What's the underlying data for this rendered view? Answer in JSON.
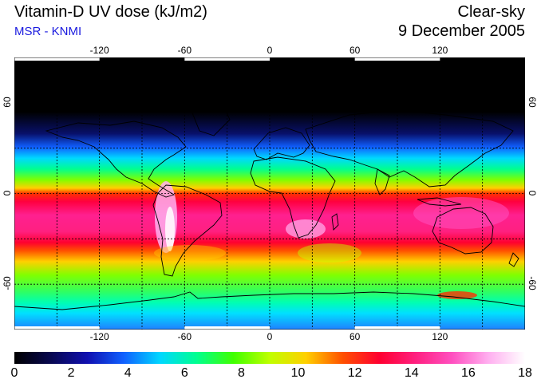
{
  "title": "Vitamin-D UV dose (kJ/m2)",
  "credit": "MSR - KNMI",
  "condition": "Clear-sky",
  "date": "9 December 2005",
  "map": {
    "lon_ticks": [
      "-120",
      "-60",
      "0",
      "60",
      "120"
    ],
    "lat_ticks_left": [
      "60",
      "0",
      "-60"
    ],
    "lat_ticks_right": [
      "60",
      "0",
      "-60"
    ],
    "lon_range": [
      -180,
      180
    ],
    "lat_range": [
      -90,
      90
    ],
    "grid_lon_values": [
      -150,
      -120,
      -90,
      -60,
      -30,
      0,
      30,
      60,
      90,
      120,
      150
    ],
    "grid_lat_values": [
      -60,
      -30,
      0,
      30,
      60
    ],
    "coastline_color": "#000000"
  },
  "colorbar": {
    "labels": [
      "0",
      "2",
      "4",
      "6",
      "8",
      "10",
      "12",
      "14",
      "16",
      "18"
    ],
    "min": 0,
    "max": 18,
    "colors": [
      "#000000",
      "#080850",
      "#1010b0",
      "#1060ff",
      "#00d8ff",
      "#00ff90",
      "#40ff00",
      "#c0ff00",
      "#ffd000",
      "#ff5000",
      "#ff0030",
      "#ff2080",
      "#ff50c0",
      "#ffb0f0",
      "#ffffff"
    ]
  }
}
